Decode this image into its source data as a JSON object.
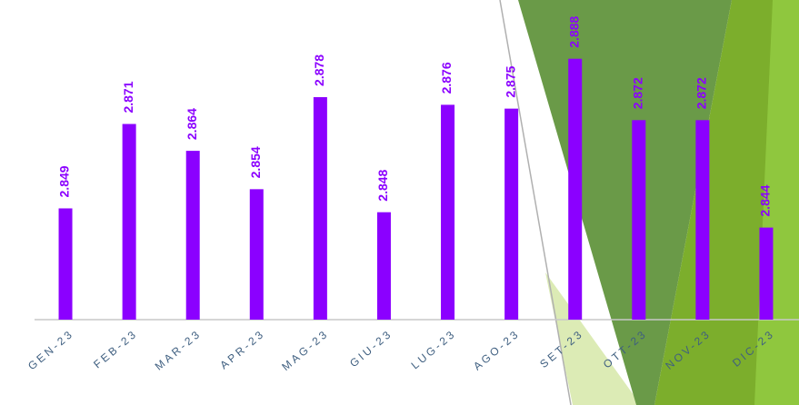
{
  "chart_data": {
    "type": "bar",
    "categories": [
      "GEN-23",
      "FEB-23",
      "MAR-23",
      "APR-23",
      "MAG-23",
      "GIU-23",
      "LUG-23",
      "AGO-23",
      "SET-23",
      "OTT-23",
      "NOV-23",
      "DIC-23"
    ],
    "values": [
      2.849,
      2.871,
      2.864,
      2.854,
      2.878,
      2.848,
      2.876,
      2.875,
      2.888,
      2.872,
      2.872,
      2.844
    ],
    "color": "#8b00ff",
    "ylim": [
      2.82,
      2.9
    ]
  }
}
